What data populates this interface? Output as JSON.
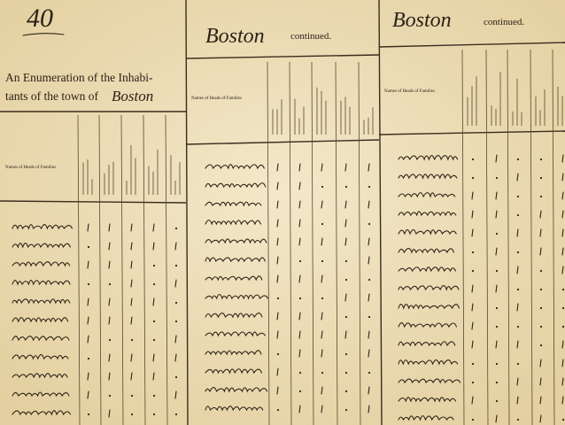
{
  "page_number": "40",
  "left": {
    "title_line_1": "An Enumeration of the Inhabi-",
    "title_line_2": "tants of the town of",
    "town": "Boston",
    "name_header": "Names of Heads of Families"
  },
  "middle": {
    "town": "Boston",
    "continued": "continued.",
    "name_header": "Names of Heads of Families"
  },
  "right": {
    "town": "Boston",
    "continued": "continued.",
    "name_header": "Names of Heads of Families"
  }
}
